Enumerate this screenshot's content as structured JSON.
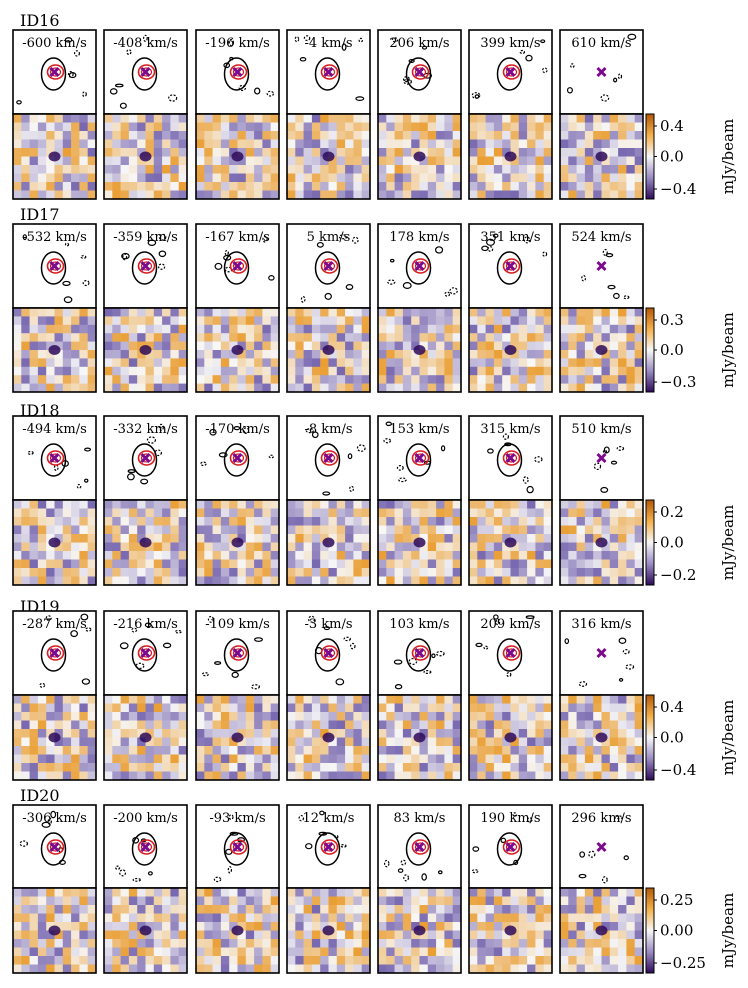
{
  "figure": {
    "unit_suffix": " km/s",
    "colorbar_label": "mJy/beam",
    "rows": [
      {
        "id": "ID16",
        "velocities": [
          "-600",
          "-408",
          "-196",
          "-4",
          "206",
          "399",
          "610"
        ],
        "cbar_ticks": [
          "0.4",
          "0.0",
          "−0.4"
        ]
      },
      {
        "id": "ID17",
        "velocities": [
          "-532",
          "-359",
          "-167",
          "5",
          "178",
          "351",
          "524"
        ],
        "cbar_ticks": [
          "0.3",
          "0.0",
          "−0.3"
        ]
      },
      {
        "id": "ID18",
        "velocities": [
          "-494",
          "-332",
          "-170",
          "-8",
          "153",
          "315",
          "510"
        ],
        "cbar_ticks": [
          "0.2",
          "0.0",
          "−0.2"
        ]
      },
      {
        "id": "ID19",
        "velocities": [
          "-287",
          "-216",
          "-109",
          "-3",
          "103",
          "209",
          "316"
        ],
        "cbar_ticks": [
          "0.4",
          "0.0",
          "−0.4"
        ]
      },
      {
        "id": "ID20",
        "velocities": [
          "-306",
          "-200",
          "-93",
          "12",
          "83",
          "190",
          "296"
        ],
        "cbar_ticks": [
          "0.25",
          "0.00",
          "−0.25"
        ]
      }
    ]
  },
  "colors": {
    "marker": "#7b0a8c",
    "model_contour": "#d81b1b",
    "data_contour": "#000000",
    "cmap_low": "#2d0a5a",
    "cmap_mid": "#f7f7f7",
    "cmap_high": "#b35806"
  }
}
